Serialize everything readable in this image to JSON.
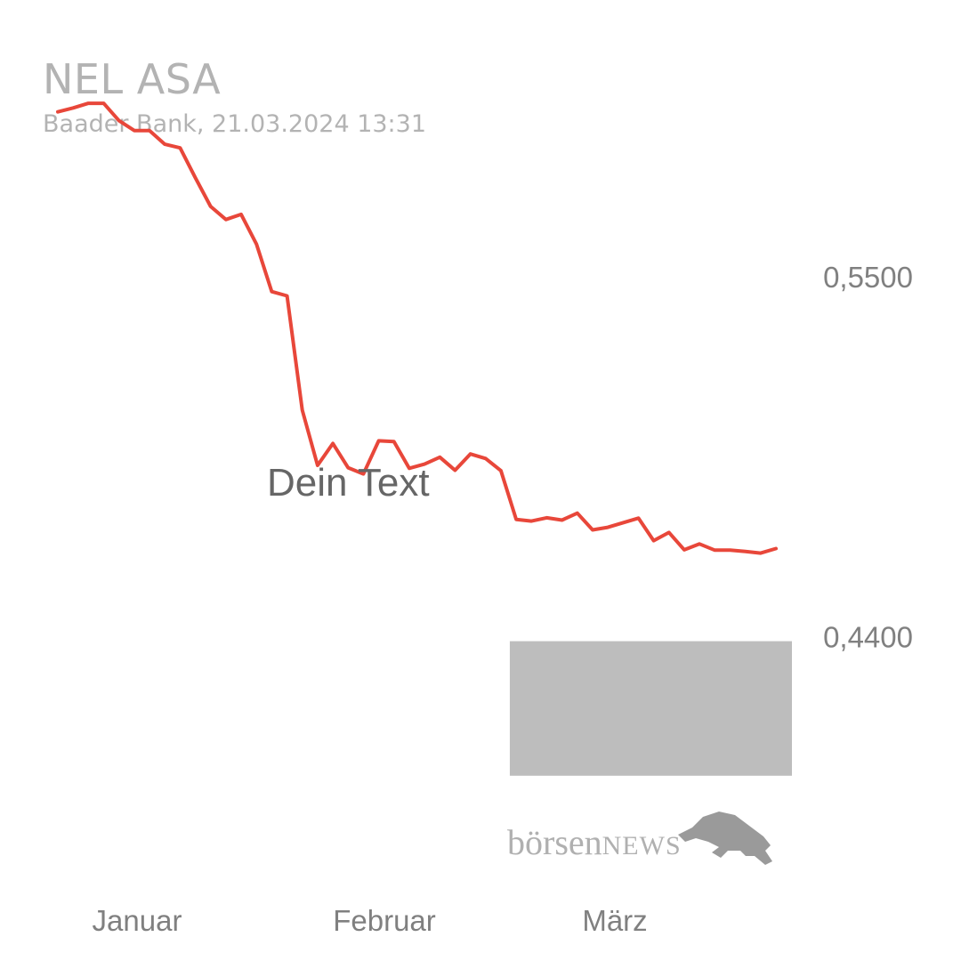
{
  "header": {
    "title": "NEL ASA",
    "subtitle": "Baader Bank, 21.03.2024 13:31"
  },
  "annotation": {
    "text": "Dein Text"
  },
  "logo": {
    "brand_part1": "börsen",
    "brand_part2": "NEWS",
    "icon": "bull-icon"
  },
  "colors": {
    "line": "#e8473a",
    "highlight_box": "#bdbdbd",
    "axis_text": "#808080",
    "title_text": "#b3b3b3"
  },
  "chart_data": {
    "type": "line",
    "title": "NEL ASA",
    "subtitle": "Baader Bank, 21.03.2024 13:31",
    "x_tick_labels": [
      "Januar",
      "Februar",
      "März"
    ],
    "y_tick_labels": [
      "0,5500",
      "0,4400"
    ],
    "y_ticks": [
      0.55,
      0.44
    ],
    "ylim": [
      0.3882,
      0.6062
    ],
    "grid": false,
    "series": [
      {
        "values": [
          0.6003,
          0.6015,
          0.6029,
          0.6029,
          0.5976,
          0.5946,
          0.5946,
          0.5904,
          0.5893,
          0.5802,
          0.5714,
          0.5674,
          0.569,
          0.5599,
          0.5454,
          0.5441,
          0.5092,
          0.4923,
          0.499,
          0.4916,
          0.4897,
          0.4998,
          0.4996,
          0.4914,
          0.4927,
          0.4948,
          0.4908,
          0.4958,
          0.4944,
          0.4907,
          0.4758,
          0.4753,
          0.4763,
          0.4756,
          0.4777,
          0.4726,
          0.4734,
          0.4748,
          0.4762,
          0.4693,
          0.4718,
          0.4665,
          0.4683,
          0.4664,
          0.4664,
          0.466,
          0.4655,
          0.4669
        ]
      }
    ],
    "highlight": {
      "x_start_index": 29,
      "x_end_index": 47,
      "y_min": 0.3975,
      "y_max": 0.4386
    }
  }
}
